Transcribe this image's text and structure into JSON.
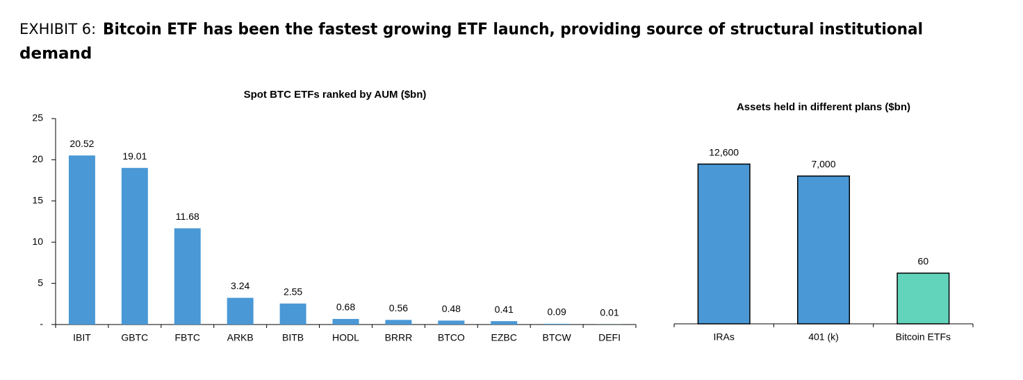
{
  "header": {
    "label": "EXHIBIT 6:",
    "title": "Bitcoin ETF has been the fastest growing ETF launch, providing source of structural institutional",
    "title_cont": "demand"
  },
  "chart_data": [
    {
      "type": "bar",
      "title": "Spot BTC ETFs ranked by AUM ($bn)",
      "categories": [
        "IBIT",
        "GBTC",
        "FBTC",
        "ARKB",
        "BITB",
        "HODL",
        "BRRR",
        "BTCO",
        "EZBC",
        "BTCW",
        "DEFI"
      ],
      "values": [
        20.52,
        19.01,
        11.68,
        3.24,
        2.55,
        0.68,
        0.56,
        0.48,
        0.41,
        0.09,
        0.01
      ],
      "color": "#4a98d5",
      "ylim": [
        0,
        25
      ],
      "yticks": [
        {
          "value": 0,
          "label": "-"
        },
        5,
        10,
        15,
        20,
        25
      ],
      "grid": false
    },
    {
      "type": "bar",
      "title": "Assets held in different plans ($bn)",
      "categories": [
        "IRAs",
        "401 (k)",
        "Bitcoin ETFs"
      ],
      "values": [
        12600,
        7000,
        60
      ],
      "value_labels": [
        "12,600",
        "7,000",
        "60"
      ],
      "colors": [
        "#4a98d5",
        "#4a98d5",
        "#62d4bc"
      ],
      "log_scale": true,
      "ylim": [
        5,
        20000
      ],
      "grid": false
    }
  ]
}
